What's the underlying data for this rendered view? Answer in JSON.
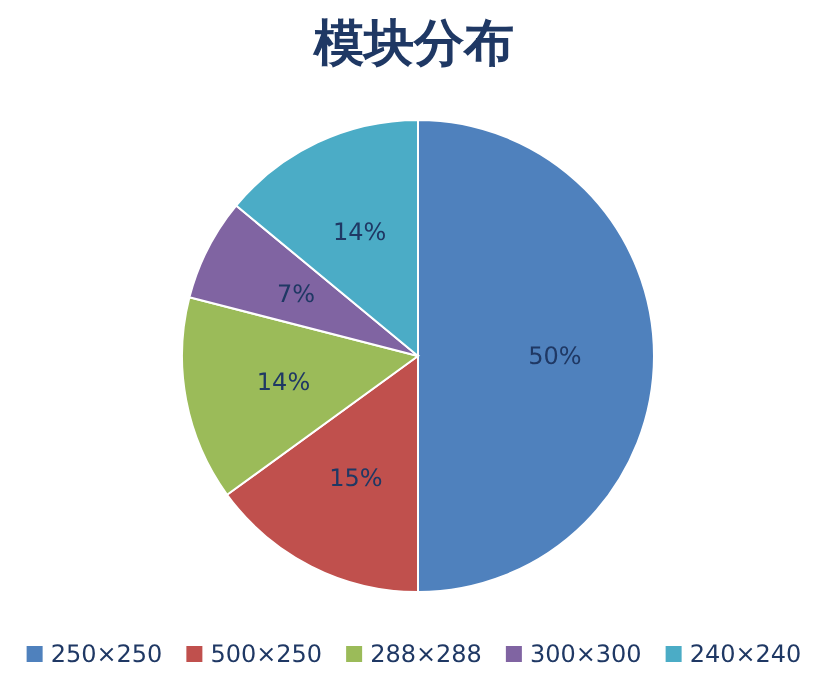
{
  "chart_data": {
    "type": "pie",
    "title": "模块分布",
    "categories": [
      "250×250",
      "500×250",
      "288×288",
      "300×300",
      "240×240"
    ],
    "values": [
      50,
      15,
      14,
      7,
      14
    ],
    "value_labels": [
      "50%",
      "15%",
      "14%",
      "7%",
      "14%"
    ],
    "colors": [
      "#4f81bd",
      "#c0504d",
      "#9bbb59",
      "#8064a2",
      "#4bacc6"
    ],
    "legend": "bottom"
  }
}
